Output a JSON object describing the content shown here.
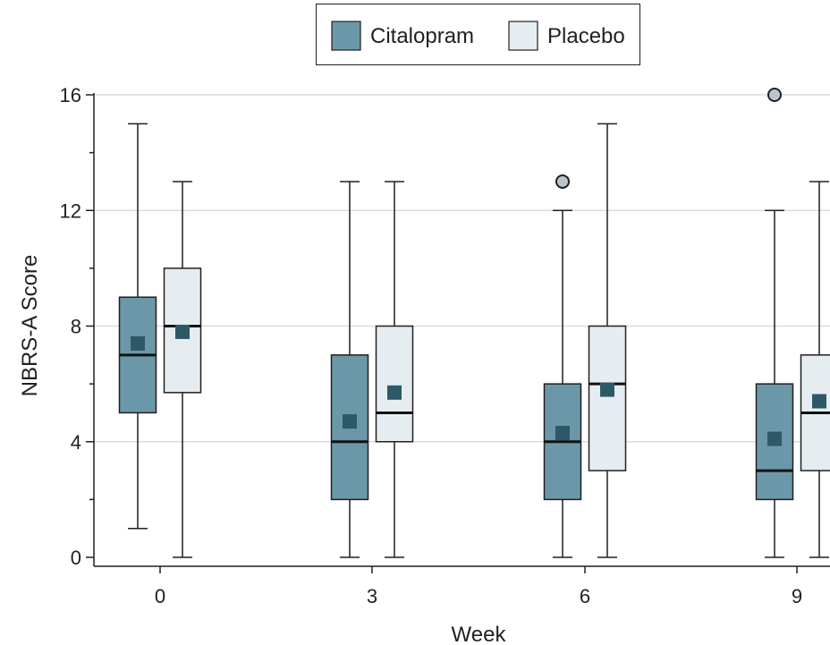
{
  "chart_data": {
    "type": "box",
    "xlabel": "Week",
    "ylabel": "NBRS-A Score",
    "ylim": [
      0,
      16
    ],
    "yticks": [
      0,
      4,
      8,
      12,
      16
    ],
    "categories": [
      "0",
      "3",
      "6",
      "9"
    ],
    "grid": "horizontal",
    "legend_position": "top-center",
    "series": [
      {
        "name": "Citalopram",
        "color": "#6b98a8",
        "mean_marker_color": "#2d5967",
        "boxes": [
          {
            "week": "0",
            "min": 1,
            "q1": 5,
            "median": 7,
            "q3": 9,
            "max": 15,
            "mean": 7.4,
            "outliers": []
          },
          {
            "week": "3",
            "min": 0,
            "q1": 2,
            "median": 4,
            "q3": 7,
            "max": 13,
            "mean": 4.7,
            "outliers": []
          },
          {
            "week": "6",
            "min": 0,
            "q1": 2,
            "median": 4,
            "q3": 6,
            "max": 12,
            "mean": 4.3,
            "outliers": [
              13
            ]
          },
          {
            "week": "9",
            "min": 0,
            "q1": 2,
            "median": 3,
            "q3": 6,
            "max": 12,
            "mean": 4.1,
            "outliers": [
              16
            ]
          }
        ]
      },
      {
        "name": "Placebo",
        "color": "#e6edf1",
        "mean_marker_color": "#2d5967",
        "boxes": [
          {
            "week": "0",
            "min": 0,
            "q1": 5.7,
            "median": 8,
            "q3": 10,
            "max": 13,
            "mean": 7.8,
            "outliers": []
          },
          {
            "week": "3",
            "min": 0,
            "q1": 4,
            "median": 5,
            "q3": 8,
            "max": 13,
            "mean": 5.7,
            "outliers": []
          },
          {
            "week": "6",
            "min": 0,
            "q1": 3,
            "median": 6,
            "q3": 8,
            "max": 15,
            "mean": 5.8,
            "outliers": []
          },
          {
            "week": "9",
            "min": 0,
            "q1": 3,
            "median": 5,
            "q3": 7,
            "max": 13,
            "mean": 5.4,
            "outliers": []
          }
        ]
      }
    ]
  }
}
